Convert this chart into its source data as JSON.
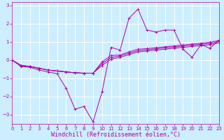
{
  "xlabel": "Windchill (Refroidissement éolien,°C)",
  "xlim": [
    0,
    23
  ],
  "ylim": [
    -3.5,
    3.2
  ],
  "xticks": [
    0,
    1,
    2,
    3,
    4,
    5,
    6,
    7,
    8,
    9,
    10,
    11,
    12,
    13,
    14,
    15,
    16,
    17,
    18,
    19,
    20,
    21,
    22,
    23
  ],
  "yticks": [
    -3,
    -2,
    -1,
    0,
    1,
    2,
    3
  ],
  "bg_color": "#cceeff",
  "line_color": "#aa00aa",
  "grid_color": "#ffffff",
  "lines": [
    {
      "x": [
        0,
        1,
        2,
        3,
        4,
        5,
        6,
        7,
        8,
        9,
        10,
        11,
        12,
        13,
        14,
        15,
        16,
        17,
        18,
        19,
        20,
        21,
        22,
        23
      ],
      "y": [
        0,
        -0.35,
        -0.4,
        -0.55,
        -0.65,
        -0.75,
        -1.55,
        -2.7,
        -2.55,
        -3.4,
        -1.75,
        0.7,
        0.55,
        2.3,
        2.8,
        1.65,
        1.55,
        1.65,
        1.65,
        0.6,
        0.15,
        0.85,
        0.65,
        1.1
      ]
    },
    {
      "x": [
        0,
        1,
        2,
        3,
        4,
        5,
        6,
        7,
        8,
        9,
        10,
        11,
        12,
        13,
        14,
        15,
        16,
        17,
        18,
        19,
        20,
        21,
        22,
        23
      ],
      "y": [
        0,
        -0.3,
        -0.35,
        -0.45,
        -0.55,
        -0.6,
        -0.65,
        -0.7,
        -0.72,
        -0.72,
        -0.3,
        0.05,
        0.15,
        0.3,
        0.45,
        0.5,
        0.55,
        0.6,
        0.65,
        0.7,
        0.75,
        0.8,
        0.85,
        0.95
      ]
    },
    {
      "x": [
        0,
        1,
        2,
        3,
        4,
        5,
        6,
        7,
        8,
        9,
        10,
        11,
        12,
        13,
        14,
        15,
        16,
        17,
        18,
        19,
        20,
        21,
        22,
        23
      ],
      "y": [
        0,
        -0.3,
        -0.35,
        -0.45,
        -0.55,
        -0.6,
        -0.65,
        -0.7,
        -0.72,
        -0.72,
        -0.2,
        0.15,
        0.22,
        0.38,
        0.52,
        0.57,
        0.62,
        0.67,
        0.72,
        0.77,
        0.82,
        0.87,
        0.92,
        1.02
      ]
    },
    {
      "x": [
        0,
        1,
        2,
        3,
        4,
        5,
        6,
        7,
        8,
        9,
        10,
        11,
        12,
        13,
        14,
        15,
        16,
        17,
        18,
        19,
        20,
        21,
        22,
        23
      ],
      "y": [
        0,
        -0.3,
        -0.35,
        -0.45,
        -0.55,
        -0.6,
        -0.65,
        -0.7,
        -0.72,
        -0.72,
        -0.1,
        0.25,
        0.28,
        0.45,
        0.6,
        0.63,
        0.68,
        0.73,
        0.78,
        0.83,
        0.88,
        0.93,
        0.98,
        1.08
      ]
    }
  ],
  "xlabel_fontsize": 6,
  "tick_fontsize": 5
}
